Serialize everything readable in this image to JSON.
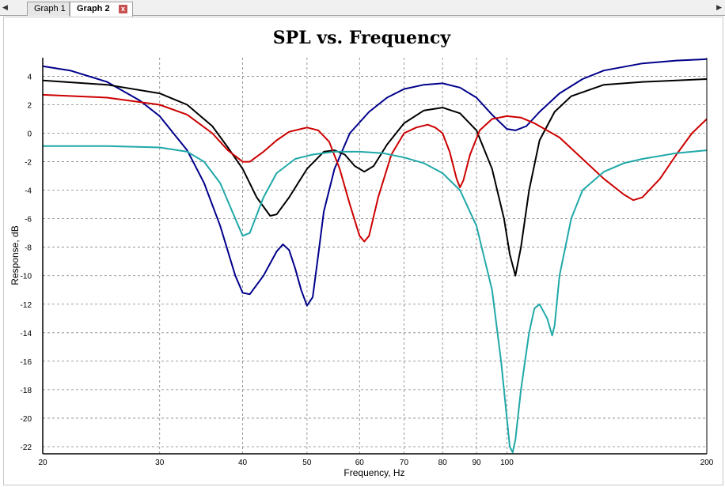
{
  "tabs": {
    "scroll_left": "◀",
    "scroll_right": "▶",
    "items": [
      {
        "label": "Graph 1"
      },
      {
        "label": "Graph 2"
      }
    ],
    "close_glyph": "x"
  },
  "chart_data": {
    "type": "line",
    "title": "SPL vs. Frequency",
    "xlabel": "Frequency, Hz",
    "ylabel": "Response, dB",
    "xscale": "log",
    "xlim": [
      20,
      200
    ],
    "ylim": [
      -22.5,
      5.3
    ],
    "xticks": [
      20,
      30,
      40,
      50,
      60,
      70,
      80,
      90,
      100,
      200
    ],
    "xtick_labels": [
      "20",
      "30",
      "40",
      "50",
      "60",
      "70",
      "80",
      "90",
      "100",
      "200"
    ],
    "yticks": [
      4,
      2,
      0,
      -2,
      -4,
      -6,
      -8,
      -10,
      -12,
      -14,
      -16,
      -18,
      -20,
      -22
    ],
    "ytick_labels": [
      "4",
      "2",
      "0",
      "-2",
      "-4",
      "-6",
      "-8",
      "-10",
      "-12",
      "-14",
      "-16",
      "-18",
      "-20",
      "-22"
    ],
    "grid": true,
    "series": [
      {
        "color": "#00008b",
        "points": [
          [
            20,
            4.7
          ],
          [
            22,
            4.4
          ],
          [
            25,
            3.6
          ],
          [
            28,
            2.3
          ],
          [
            30,
            1.2
          ],
          [
            33,
            -1.2
          ],
          [
            35,
            -3.5
          ],
          [
            37,
            -6.5
          ],
          [
            39,
            -10
          ],
          [
            40,
            -11.2
          ],
          [
            41,
            -11.3
          ],
          [
            43,
            -10
          ],
          [
            45,
            -8.3
          ],
          [
            46,
            -7.8
          ],
          [
            47,
            -8.2
          ],
          [
            48,
            -9.5
          ],
          [
            49,
            -11
          ],
          [
            50,
            -12.1
          ],
          [
            51,
            -11.5
          ],
          [
            52,
            -8.5
          ],
          [
            53,
            -5.5
          ],
          [
            55,
            -2.5
          ],
          [
            58,
            0
          ],
          [
            62,
            1.5
          ],
          [
            66,
            2.5
          ],
          [
            70,
            3.1
          ],
          [
            75,
            3.4
          ],
          [
            80,
            3.5
          ],
          [
            85,
            3.2
          ],
          [
            90,
            2.5
          ],
          [
            95,
            1.3
          ],
          [
            100,
            0.3
          ],
          [
            103,
            0.2
          ],
          [
            107,
            0.5
          ],
          [
            112,
            1.5
          ],
          [
            120,
            2.8
          ],
          [
            130,
            3.8
          ],
          [
            140,
            4.4
          ],
          [
            160,
            4.9
          ],
          [
            180,
            5.1
          ],
          [
            200,
            5.2
          ]
        ]
      },
      {
        "color": "#000000",
        "points": [
          [
            20,
            3.7
          ],
          [
            25,
            3.4
          ],
          [
            30,
            2.8
          ],
          [
            33,
            2
          ],
          [
            36,
            0.5
          ],
          [
            38,
            -1
          ],
          [
            40,
            -2.5
          ],
          [
            42,
            -4.5
          ],
          [
            44,
            -5.8
          ],
          [
            45,
            -5.7
          ],
          [
            47,
            -4.5
          ],
          [
            50,
            -2.5
          ],
          [
            53,
            -1.3
          ],
          [
            55,
            -1.2
          ],
          [
            57,
            -1.5
          ],
          [
            59,
            -2.3
          ],
          [
            61,
            -2.7
          ],
          [
            63,
            -2.3
          ],
          [
            66,
            -0.8
          ],
          [
            70,
            0.7
          ],
          [
            75,
            1.6
          ],
          [
            80,
            1.8
          ],
          [
            85,
            1.4
          ],
          [
            90,
            0.2
          ],
          [
            95,
            -2.5
          ],
          [
            99,
            -6
          ],
          [
            101,
            -8.5
          ],
          [
            103,
            -10
          ],
          [
            105,
            -8
          ],
          [
            108,
            -4
          ],
          [
            112,
            -0.5
          ],
          [
            118,
            1.5
          ],
          [
            125,
            2.6
          ],
          [
            140,
            3.4
          ],
          [
            160,
            3.6
          ],
          [
            180,
            3.7
          ],
          [
            200,
            3.8
          ]
        ]
      },
      {
        "color": "#cc0000",
        "points": [
          [
            20,
            2.7
          ],
          [
            25,
            2.5
          ],
          [
            30,
            2
          ],
          [
            33,
            1.3
          ],
          [
            36,
            0
          ],
          [
            38,
            -1.2
          ],
          [
            40,
            -2
          ],
          [
            41,
            -2
          ],
          [
            43,
            -1.3
          ],
          [
            45,
            -0.5
          ],
          [
            47,
            0.1
          ],
          [
            50,
            0.4
          ],
          [
            52,
            0.2
          ],
          [
            54,
            -0.6
          ],
          [
            56,
            -2.5
          ],
          [
            58,
            -5
          ],
          [
            60,
            -7.2
          ],
          [
            61,
            -7.6
          ],
          [
            62,
            -7.2
          ],
          [
            64,
            -4.5
          ],
          [
            67,
            -1.5
          ],
          [
            70,
            0
          ],
          [
            73,
            0.4
          ],
          [
            76,
            0.6
          ],
          [
            78,
            0.4
          ],
          [
            80,
            0
          ],
          [
            82,
            -1.3
          ],
          [
            84,
            -3.2
          ],
          [
            85,
            -3.8
          ],
          [
            86,
            -3.3
          ],
          [
            88,
            -1.5
          ],
          [
            91,
            0.2
          ],
          [
            95,
            1
          ],
          [
            100,
            1.2
          ],
          [
            105,
            1.1
          ],
          [
            110,
            0.7
          ],
          [
            120,
            -0.3
          ],
          [
            130,
            -1.8
          ],
          [
            140,
            -3.2
          ],
          [
            150,
            -4.3
          ],
          [
            155,
            -4.7
          ],
          [
            160,
            -4.5
          ],
          [
            170,
            -3.2
          ],
          [
            180,
            -1.5
          ],
          [
            190,
            0
          ],
          [
            200,
            1
          ]
        ]
      },
      {
        "color": "#20a8a8",
        "points": [
          [
            20,
            -0.9
          ],
          [
            25,
            -0.9
          ],
          [
            30,
            -1
          ],
          [
            33,
            -1.3
          ],
          [
            35,
            -2
          ],
          [
            37,
            -3.5
          ],
          [
            39,
            -6
          ],
          [
            40,
            -7.2
          ],
          [
            41,
            -7
          ],
          [
            43,
            -4.5
          ],
          [
            45,
            -2.8
          ],
          [
            48,
            -1.8
          ],
          [
            51,
            -1.5
          ],
          [
            55,
            -1.3
          ],
          [
            60,
            -1.3
          ],
          [
            65,
            -1.4
          ],
          [
            70,
            -1.7
          ],
          [
            75,
            -2.1
          ],
          [
            80,
            -2.8
          ],
          [
            85,
            -4
          ],
          [
            90,
            -6.5
          ],
          [
            95,
            -11
          ],
          [
            98,
            -16
          ],
          [
            100,
            -20
          ],
          [
            101,
            -22
          ],
          [
            102,
            -22.4
          ],
          [
            103,
            -21.5
          ],
          [
            105,
            -18
          ],
          [
            108,
            -14
          ],
          [
            110,
            -12.3
          ],
          [
            112,
            -12
          ],
          [
            115,
            -13
          ],
          [
            117,
            -14.2
          ],
          [
            118,
            -13.5
          ],
          [
            120,
            -10
          ],
          [
            125,
            -6
          ],
          [
            130,
            -4
          ],
          [
            140,
            -2.7
          ],
          [
            150,
            -2.1
          ],
          [
            160,
            -1.8
          ],
          [
            180,
            -1.4
          ],
          [
            200,
            -1.2
          ]
        ]
      }
    ]
  }
}
